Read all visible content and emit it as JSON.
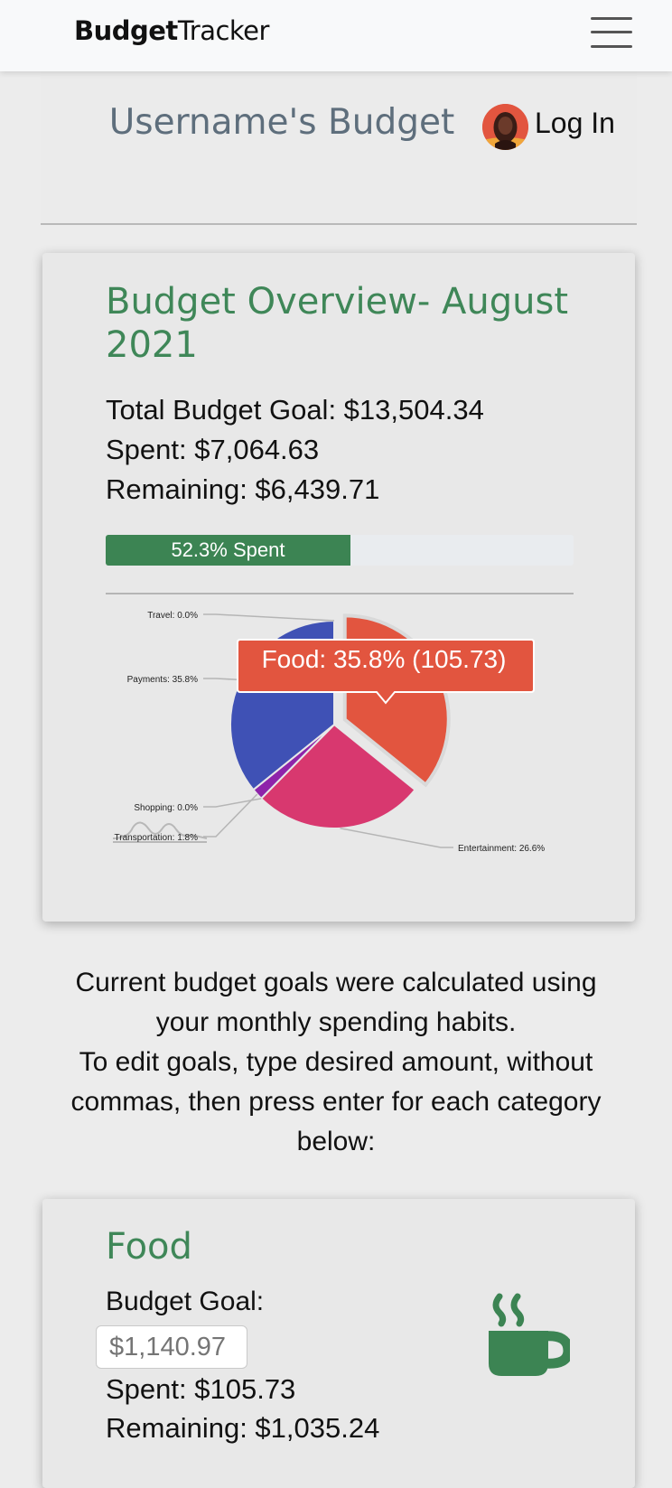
{
  "navbar": {
    "brand_bold": "Budget",
    "brand_light": "Tracker",
    "menu_icon": "hamburger-icon"
  },
  "header": {
    "title": "Username's Budget",
    "login_label": "Log In",
    "avatar_icon": "user-avatar"
  },
  "overview": {
    "title": "Budget Overview- August 2021",
    "total_goal": "Total Budget Goal: $13,504.34",
    "spent": "Spent: $7,064.63",
    "remaining": "Remaining: $6,439.71",
    "progress_label": "52.3% Spent",
    "progress_value": 0.523,
    "accent_color": "#3c8453"
  },
  "chart_data": {
    "type": "pie",
    "slices": [
      {
        "name": "Food",
        "value": 35.8,
        "label": "Food: 35.8%",
        "color": "#e2553f"
      },
      {
        "name": "Entertainment",
        "value": 26.6,
        "label": "Entertainment: 26.6%",
        "color": "#d8386f"
      },
      {
        "name": "Shopping",
        "value": 0.0,
        "label": "Shopping: 0.0%",
        "color": "#8e24aa"
      },
      {
        "name": "Transportation",
        "value": 1.8,
        "label": "Transportation: 1.8%",
        "color": "#8e24aa"
      },
      {
        "name": "Payments",
        "value": 35.8,
        "label": "Payments: 35.8%",
        "color": "#3f51b5"
      },
      {
        "name": "Travel",
        "value": 0.0,
        "label": "Travel: 0.0%",
        "color": "#3f51b5"
      }
    ],
    "tooltip": "Food: 35.8% (105.73)",
    "tooltip_color": "#e2553f",
    "exploded_slice": "Food"
  },
  "info": {
    "line1": "Current budget goals were calculated using your monthly spending habits.",
    "line2": "To edit goals, type desired amount, without commas, then press enter for each category below:"
  },
  "food": {
    "title": "Food",
    "goal_label": "Budget Goal:",
    "goal_placeholder": "$1,140.97",
    "spent": "Spent: $105.73",
    "remaining": "Remaining: $1,035.24",
    "icon": "coffee-cup-icon",
    "icon_color": "#3c8453"
  }
}
